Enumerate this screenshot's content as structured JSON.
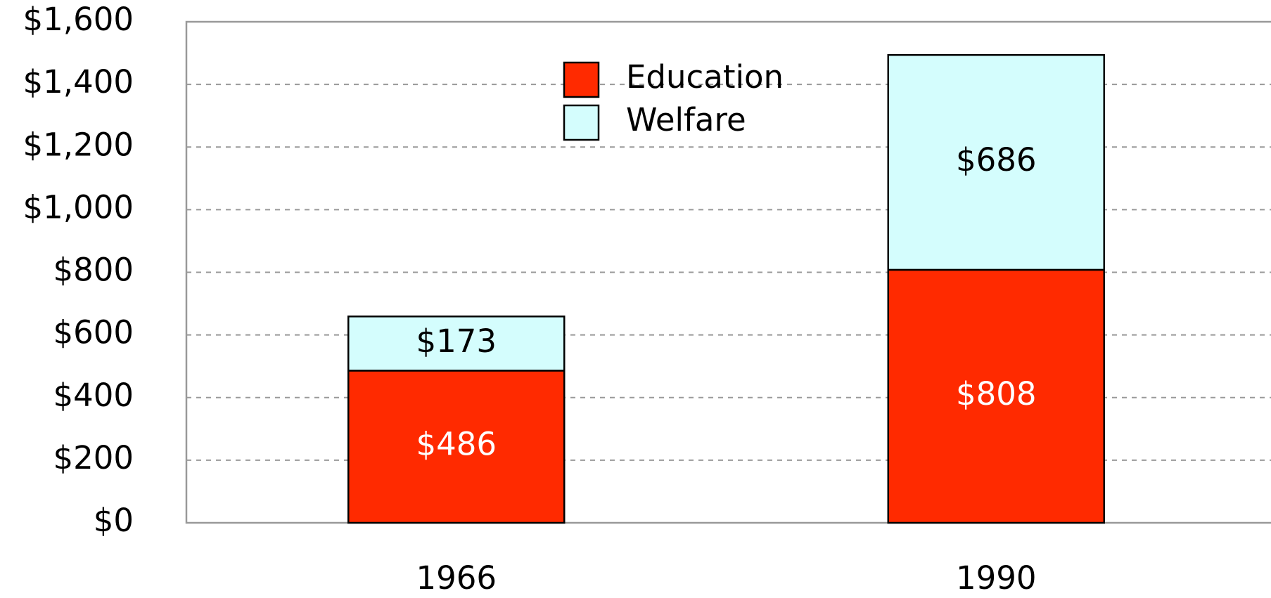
{
  "chart_data": {
    "type": "stacked_bar",
    "categories": [
      "1966",
      "1990"
    ],
    "series": [
      {
        "name": "Education",
        "color": "#ff2a00",
        "values": [
          486,
          808
        ],
        "value_labels": [
          "$486",
          "$808"
        ]
      },
      {
        "name": "Welfare",
        "color": "#d4fdfd",
        "values": [
          173,
          686
        ],
        "value_labels": [
          "$173",
          "$686"
        ]
      }
    ],
    "ylim": [
      0,
      1600
    ],
    "yticks": [
      {
        "value": 0,
        "label": "$0"
      },
      {
        "value": 200,
        "label": "$200"
      },
      {
        "value": 400,
        "label": "$400"
      },
      {
        "value": 600,
        "label": "$600"
      },
      {
        "value": 800,
        "label": "$800"
      },
      {
        "value": 1000,
        "label": "$1,000"
      },
      {
        "value": 1200,
        "label": "$1,200"
      },
      {
        "value": 1400,
        "label": "$1,400"
      },
      {
        "value": 1600,
        "label": "$1,600"
      }
    ],
    "grid": true
  }
}
